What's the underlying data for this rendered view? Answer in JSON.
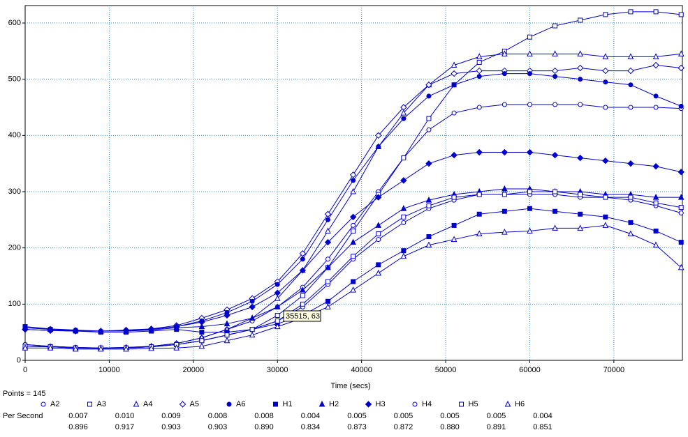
{
  "chart_data": {
    "type": "line",
    "x_label": "Time (secs)",
    "annotation": "35515, 63",
    "points_label": "Points = 145",
    "x": [
      0,
      3000,
      6000,
      9000,
      12000,
      15000,
      18000,
      21000,
      24000,
      27000,
      30000,
      33000,
      36000,
      39000,
      42000,
      45000,
      48000,
      51000,
      54000,
      57000,
      60000,
      63000,
      66000,
      69000,
      72000,
      75000,
      78000
    ],
    "xlim": [
      0,
      78150
    ],
    "ylim": [
      0,
      631
    ],
    "xticks": [
      0,
      10000,
      20000,
      30000,
      40000,
      50000,
      60000,
      70000
    ],
    "yticks": [
      0,
      100,
      200,
      300,
      400,
      500,
      600
    ],
    "grid": true,
    "series": [
      {
        "name": "A2",
        "color": "#0000cc",
        "marker": "circle",
        "filled": false,
        "values": [
          28,
          25,
          23,
          22,
          23,
          25,
          30,
          40,
          55,
          70,
          95,
          130,
          180,
          240,
          300,
          360,
          410,
          440,
          450,
          455,
          455,
          455,
          455,
          450,
          450,
          450,
          448
        ]
      },
      {
        "name": "A3",
        "color": "#0000cc",
        "marker": "square",
        "filled": false,
        "values": [
          25,
          24,
          22,
          21,
          22,
          24,
          28,
          35,
          45,
          55,
          80,
          115,
          165,
          230,
          295,
          360,
          430,
          490,
          530,
          550,
          575,
          595,
          605,
          615,
          620,
          620,
          615
        ]
      },
      {
        "name": "A4",
        "color": "#0000cc",
        "marker": "triangle",
        "filled": false,
        "values": [
          25,
          24,
          22,
          22,
          23,
          25,
          30,
          40,
          55,
          75,
          110,
          160,
          230,
          300,
          380,
          440,
          490,
          525,
          540,
          545,
          545,
          545,
          545,
          540,
          540,
          540,
          545
        ]
      },
      {
        "name": "A5",
        "color": "#0000cc",
        "marker": "diamond",
        "filled": false,
        "values": [
          55,
          53,
          52,
          52,
          54,
          56,
          62,
          75,
          90,
          110,
          140,
          190,
          260,
          330,
          400,
          450,
          490,
          510,
          515,
          515,
          515,
          515,
          520,
          515,
          515,
          525,
          520
        ]
      },
      {
        "name": "A6",
        "color": "#0000cc",
        "marker": "circle",
        "filled": true,
        "values": [
          60,
          56,
          54,
          52,
          52,
          55,
          60,
          70,
          85,
          105,
          135,
          180,
          250,
          320,
          380,
          430,
          470,
          490,
          505,
          510,
          510,
          505,
          500,
          495,
          490,
          470,
          452
        ]
      },
      {
        "name": "H1",
        "color": "#0000cc",
        "marker": "square",
        "filled": true,
        "values": [
          60,
          55,
          52,
          50,
          50,
          52,
          55,
          50,
          50,
          55,
          65,
          80,
          105,
          140,
          170,
          195,
          220,
          240,
          260,
          265,
          270,
          265,
          260,
          255,
          245,
          230,
          210
        ]
      },
      {
        "name": "H2",
        "color": "#0000cc",
        "marker": "triangle",
        "filled": true,
        "values": [
          58,
          55,
          53,
          52,
          52,
          54,
          58,
          60,
          65,
          75,
          95,
          125,
          165,
          210,
          240,
          270,
          285,
          295,
          300,
          305,
          305,
          300,
          300,
          295,
          295,
          290,
          290
        ]
      },
      {
        "name": "H3",
        "color": "#0000cc",
        "marker": "diamond",
        "filled": true,
        "values": [
          55,
          53,
          52,
          52,
          53,
          55,
          60,
          68,
          80,
          95,
          120,
          160,
          210,
          255,
          290,
          320,
          350,
          365,
          370,
          370,
          370,
          365,
          360,
          355,
          350,
          345,
          335
        ]
      },
      {
        "name": "H4",
        "color": "#0000cc",
        "marker": "circle",
        "filled": false,
        "values": [
          28,
          25,
          23,
          22,
          22,
          24,
          28,
          35,
          45,
          55,
          70,
          95,
          135,
          180,
          215,
          245,
          270,
          285,
          295,
          295,
          295,
          295,
          290,
          290,
          285,
          275,
          262
        ]
      },
      {
        "name": "H5",
        "color": "#0000cc",
        "marker": "square",
        "filled": false,
        "values": [
          25,
          24,
          22,
          22,
          22,
          24,
          28,
          35,
          45,
          55,
          70,
          100,
          140,
          185,
          225,
          255,
          275,
          290,
          295,
          295,
          300,
          300,
          295,
          290,
          290,
          280,
          272
        ]
      },
      {
        "name": "H6",
        "color": "#0000cc",
        "marker": "triangle",
        "filled": false,
        "values": [
          22,
          22,
          20,
          20,
          20,
          21,
          22,
          25,
          35,
          45,
          60,
          75,
          95,
          125,
          155,
          185,
          205,
          215,
          225,
          228,
          230,
          235,
          235,
          240,
          225,
          205,
          165
        ]
      }
    ],
    "rate_label": "Per Second",
    "rates": [
      "0.007",
      "0.010",
      "0.009",
      "0.008",
      "0.008",
      "0.004",
      "0.005",
      "0.005",
      "0.005",
      "0.005",
      "0.004"
    ],
    "r2": [
      "0.896",
      "0.917",
      "0.903",
      "0.903",
      "0.890",
      "0.834",
      "0.873",
      "0.872",
      "0.880",
      "0.891",
      "0.851"
    ]
  }
}
